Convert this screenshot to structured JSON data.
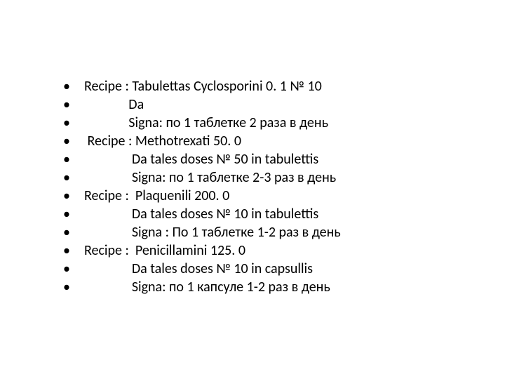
{
  "slide": {
    "background_color": "#ffffff",
    "text_color": "#000000",
    "font_size_pt": 20,
    "font_family": "Calibri, Arial, sans-serif",
    "bullets": [
      "Recipe : Tabulettas Cyclosporini 0. 1 № 10",
      "              Da",
      "              Signa: по 1 таблетке 2 раза в день",
      " Recipe : Methotrexati 50. 0",
      "               Da tales doses № 50 in tabulettis",
      "               Signa: по 1 таблетке 2-3 раз в день",
      "Recipe :  Plaquenili 200. 0",
      "               Da tales doses № 10 in tabulettis",
      "               Signa : По 1 таблетке 1-2 раз в день",
      "Recipe :  Penicillamini 125. 0",
      "               Da tales doses № 10 in capsullis",
      "               Signa: по 1 капсуле 1-2 раз в день"
    ]
  }
}
